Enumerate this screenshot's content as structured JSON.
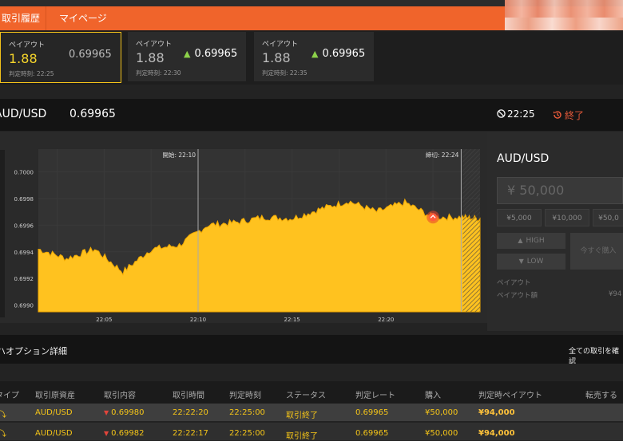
{
  "tabs": [
    "取引履歴",
    "マイページ"
  ],
  "payout_cards": [
    {
      "label": "ペイアウト",
      "payout": "1.88",
      "rate": "0.69965",
      "time_label": "判定時刻:",
      "time": "22:25",
      "up": false,
      "selected": true
    },
    {
      "label": "ペイアウト",
      "payout": "1.88",
      "rate": "0.69965",
      "time_label": "判定時刻:",
      "time": "22:30",
      "up": true,
      "selected": false
    },
    {
      "label": "ペイアウト",
      "payout": "1.88",
      "rate": "0.69965",
      "time_label": "判定時刻:",
      "time": "22:35",
      "up": true,
      "selected": false
    }
  ],
  "asset_header": {
    "name": "AUD/USD",
    "rate": "0.69965",
    "timer": "22:25",
    "end_label": "終了"
  },
  "chart_data": {
    "type": "area",
    "y_ticks": [
      "0.7000",
      "0.6998",
      "0.6996",
      "0.6994",
      "0.6992",
      "0.6990"
    ],
    "x_ticks": [
      "22:05",
      "22:10",
      "22:15",
      "22:20"
    ],
    "start_label": "開始: 22:10",
    "close_label": "締切: 22:24",
    "ylim": [
      0.69895,
      0.70017
    ],
    "x_range_minutes": [
      22.025,
      22.4167
    ],
    "series": [
      {
        "x": [
          22.025,
          22.05,
          22.075,
          22.1,
          22.125,
          22.15,
          22.175,
          22.2,
          22.225,
          22.25,
          22.275,
          22.3,
          22.325,
          22.35,
          22.375,
          22.4,
          22.4167
        ],
        "values": [
          0.69942,
          0.69935,
          0.69942,
          0.69925,
          0.69942,
          0.69945,
          0.6996,
          0.69962,
          0.69966,
          0.69965,
          0.69972,
          0.69978,
          0.6997,
          0.69977,
          0.69966,
          0.69966,
          0.69965
        ]
      }
    ],
    "current_point": {
      "x": 22.375,
      "y": 0.69966
    },
    "colors": {
      "fill": "#ffc21f",
      "line": "#f0a800",
      "grid": "#3a3a3a",
      "plot_bg": "#333333"
    }
  },
  "side_panel": {
    "asset": "AUD/USD",
    "amount_placeholder": "¥ 50,000",
    "amounts": [
      "¥5,000",
      "¥10,000",
      "¥50,0"
    ],
    "high_label": "HIGH",
    "low_label": "LOW",
    "buy_now_label": "今すぐ購入",
    "payout_label": "ペイアウト",
    "payout_amount_label": "ペイアウト額",
    "payout_amount_value": "¥94"
  },
  "detail": {
    "title": "ハイローオプション詳細",
    "title_visible": "ハオプション詳細",
    "link": "全ての取引を確認"
  },
  "table": {
    "headers": [
      "タイプ",
      "取引原資産",
      "取引内容",
      "取引時間",
      "判定時刻",
      "ステータス",
      "判定レート",
      "購入",
      "判定時ペイアウト",
      "転売する"
    ],
    "rows": [
      {
        "asset": "AUD/USD",
        "content": "0.69980",
        "trade_time": "22:22:20",
        "judge_time": "22:25:00",
        "status": "取引終了",
        "judge_rate": "0.69965",
        "purchase": "¥50,000",
        "payout": "¥94,000"
      },
      {
        "asset": "AUD/USD",
        "content": "0.69982",
        "trade_time": "22:22:17",
        "judge_time": "22:25:00",
        "status": "取引終了",
        "judge_rate": "0.69965",
        "purchase": "¥50,000",
        "payout": "¥94,000"
      }
    ]
  },
  "icons": {
    "up_arrow": "up-arrow-icon",
    "down_arrow": "down-arrow-icon",
    "timer": "no-entry-icon",
    "end": "history-icon"
  }
}
